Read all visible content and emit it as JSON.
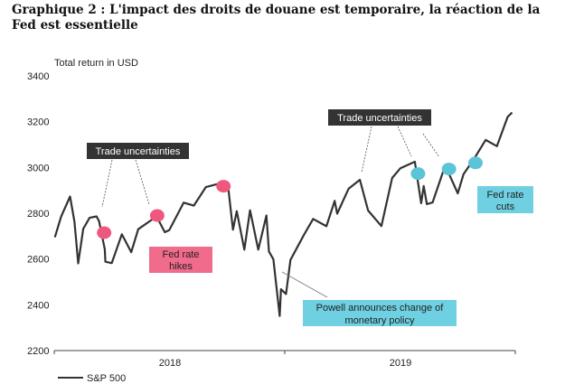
{
  "title": "Graphique 2 : L'impact des droits de douane est temporaire, la réaction de la Fed est essentielle",
  "chart_data": {
    "type": "line",
    "ylabel": "Total return in USD",
    "ylim": [
      2200,
      3400
    ],
    "yticks": [
      "2200",
      "2400",
      "2600",
      "2800",
      "3000",
      "3200",
      "3400"
    ],
    "xlim": [
      "2018-01-01",
      "2020-01-01"
    ],
    "xtick_labels": [
      "2018",
      "2019"
    ],
    "grid": false,
    "legend": {
      "position": "bottom-left",
      "entries": [
        "S&P 500"
      ]
    },
    "series": [
      {
        "name": "S&P 500",
        "color": "#333333",
        "points": [
          [
            "2018-01-02",
            2695
          ],
          [
            "2018-01-12",
            2786
          ],
          [
            "2018-01-26",
            2873
          ],
          [
            "2018-02-02",
            2762
          ],
          [
            "2018-02-08",
            2581
          ],
          [
            "2018-02-16",
            2732
          ],
          [
            "2018-02-26",
            2780
          ],
          [
            "2018-03-09",
            2786
          ],
          [
            "2018-03-13",
            2765
          ],
          [
            "2018-03-22",
            2643
          ],
          [
            "2018-03-23",
            2588
          ],
          [
            "2018-04-02",
            2582
          ],
          [
            "2018-04-18",
            2708
          ],
          [
            "2018-05-03",
            2630
          ],
          [
            "2018-05-14",
            2730
          ],
          [
            "2018-06-12",
            2786
          ],
          [
            "2018-06-25",
            2717
          ],
          [
            "2018-07-02",
            2726
          ],
          [
            "2018-07-25",
            2846
          ],
          [
            "2018-08-10",
            2833
          ],
          [
            "2018-08-29",
            2914
          ],
          [
            "2018-09-20",
            2930
          ],
          [
            "2018-10-03",
            2925
          ],
          [
            "2018-10-11",
            2728
          ],
          [
            "2018-10-17",
            2809
          ],
          [
            "2018-10-29",
            2641
          ],
          [
            "2018-11-07",
            2813
          ],
          [
            "2018-11-20",
            2641
          ],
          [
            "2018-12-03",
            2790
          ],
          [
            "2018-12-07",
            2633
          ],
          [
            "2018-12-14",
            2599
          ],
          [
            "2018-12-24",
            2351
          ],
          [
            "2018-12-26",
            2468
          ],
          [
            "2019-01-03",
            2447
          ],
          [
            "2019-01-10",
            2596
          ],
          [
            "2019-01-31",
            2704
          ],
          [
            "2019-02-15",
            2775
          ],
          [
            "2019-03-08",
            2743
          ],
          [
            "2019-03-21",
            2854
          ],
          [
            "2019-03-25",
            2798
          ],
          [
            "2019-04-12",
            2907
          ],
          [
            "2019-04-30",
            2946
          ],
          [
            "2019-05-13",
            2812
          ],
          [
            "2019-06-03",
            2744
          ],
          [
            "2019-06-20",
            2954
          ],
          [
            "2019-07-03",
            2996
          ],
          [
            "2019-07-26",
            3025
          ],
          [
            "2019-08-05",
            2844
          ],
          [
            "2019-08-09",
            2919
          ],
          [
            "2019-08-14",
            2840
          ],
          [
            "2019-08-23",
            2847
          ],
          [
            "2019-09-12",
            3009
          ],
          [
            "2019-10-02",
            2887
          ],
          [
            "2019-10-11",
            2970
          ],
          [
            "2019-10-28",
            3039
          ],
          [
            "2019-11-15",
            3120
          ],
          [
            "2019-12-03",
            3093
          ],
          [
            "2019-12-20",
            3221
          ],
          [
            "2019-12-27",
            3240
          ]
        ]
      }
    ],
    "markers": [
      {
        "group": "Fed rate hikes",
        "color": "#f0577e",
        "points": [
          [
            "2018-03-21",
            2715
          ],
          [
            "2018-06-13",
            2790
          ],
          [
            "2018-09-26",
            2918
          ]
        ]
      },
      {
        "group": "Fed rate cuts",
        "color": "#5bc4d6",
        "points": [
          [
            "2019-07-31",
            2973
          ],
          [
            "2019-09-18",
            2993
          ],
          [
            "2019-10-30",
            3020
          ]
        ]
      }
    ],
    "annotations": [
      {
        "id": "trade1",
        "text": "Trade uncertainties",
        "color": "#333333"
      },
      {
        "id": "hikes",
        "text": [
          "Fed rate",
          "hikes"
        ],
        "color": "#f06b8c"
      },
      {
        "id": "trade2",
        "text": "Trade uncertainties",
        "color": "#333333"
      },
      {
        "id": "cuts",
        "text": [
          "Fed rate",
          "cuts"
        ],
        "color": "#6fd0e2"
      },
      {
        "id": "powell",
        "text": [
          "Powell announces change of",
          "monetary policy"
        ],
        "color": "#6fd0e2"
      }
    ]
  }
}
